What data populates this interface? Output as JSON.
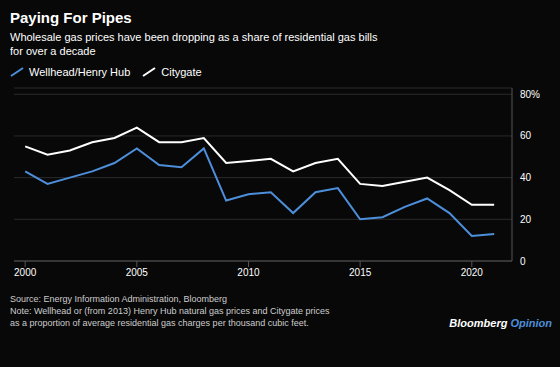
{
  "chart_data": {
    "type": "line",
    "title": "Paying For Pipes",
    "subtitle": "Wholesale gas prices have been dropping as a share of residential gas bills\nfor over a decade",
    "annotations": [
      "Source: Energy Information Administration, Bloomberg\nNote: Wellhead or (from 2013) Henry Hub natural gas prices and Citygate prices\nas a proportion of average residential gas charges per thousand cubic feet.",
      "Bloomberg",
      "Opinion"
    ],
    "x": [
      2000,
      2001,
      2002,
      2003,
      2004,
      2005,
      2006,
      2007,
      2008,
      2009,
      2010,
      2011,
      2012,
      2013,
      2014,
      2015,
      2016,
      2017,
      2018,
      2019,
      2020,
      2021
    ],
    "series": [
      {
        "name": "Wellhead/Henry Hub",
        "color": "#4d8fdb",
        "values": [
          43,
          37,
          40,
          43,
          47,
          54,
          46,
          45,
          54,
          29,
          32,
          33,
          23,
          33,
          35,
          20,
          21,
          26,
          30,
          23,
          12,
          13
        ]
      },
      {
        "name": "Citygate",
        "color": "#ffffff",
        "values": [
          55,
          51,
          53,
          57,
          59,
          64,
          57,
          57,
          59,
          47,
          48,
          49,
          43,
          47,
          49,
          37,
          36,
          38,
          40,
          34,
          27,
          27
        ]
      }
    ],
    "xlim": [
      1999.5,
      2021.8
    ],
    "xticks": [
      2000,
      2005,
      2010,
      2015,
      2020
    ],
    "ylim": [
      0,
      83
    ],
    "yticks": [
      0,
      20,
      40,
      60,
      {
        "value": 80,
        "label": "80%"
      }
    ],
    "grid": true,
    "legend": "upper left"
  }
}
